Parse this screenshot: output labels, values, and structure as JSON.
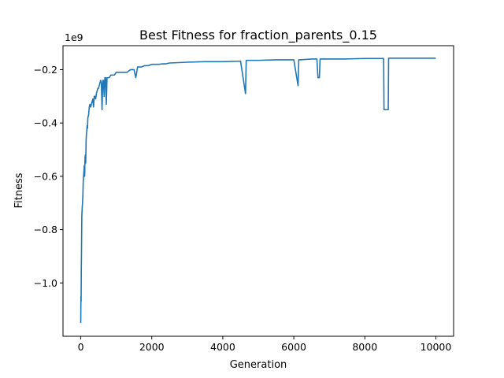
{
  "chart_data": {
    "type": "line",
    "title": "Best Fitness for fraction_parents_0.15",
    "xlabel": "Generation",
    "ylabel": "Fitness",
    "offset_label": "1e9",
    "x_ticks": [
      0,
      2000,
      4000,
      6000,
      8000,
      10000
    ],
    "x_tick_labels": [
      "0",
      "2000",
      "4000",
      "6000",
      "8000",
      "10000"
    ],
    "y_ticks": [
      -1.0,
      -0.8,
      -0.6,
      -0.4,
      -0.2
    ],
    "y_tick_labels": [
      "−1.0",
      "−0.8",
      "−0.6",
      "−0.4",
      "−0.2"
    ],
    "xlim": [
      -500,
      10500
    ],
    "ylim": [
      -1.2,
      -0.11
    ],
    "grid": false,
    "series": [
      {
        "color": "#1f77b4",
        "x": [
          0,
          5,
          10,
          15,
          20,
          25,
          30,
          40,
          50,
          60,
          70,
          80,
          90,
          100,
          110,
          120,
          130,
          140,
          150,
          160,
          170,
          180,
          190,
          200,
          220,
          240,
          260,
          280,
          300,
          320,
          340,
          360,
          380,
          400,
          420,
          440,
          460,
          480,
          500,
          520,
          540,
          560,
          580,
          600,
          620,
          640,
          660,
          680,
          700,
          720,
          740,
          760,
          780,
          800,
          850,
          900,
          950,
          1000,
          1050,
          1100,
          1200,
          1300,
          1400,
          1500,
          1550,
          1600,
          1700,
          1800,
          1900,
          2000,
          2100,
          2200,
          2300,
          2400,
          2500,
          3000,
          3500,
          4000,
          4500,
          4640,
          4660,
          4680,
          5000,
          5500,
          5600,
          6000,
          6120,
          6140,
          6160,
          6500,
          6650,
          6680,
          6720,
          6740,
          7000,
          7400,
          8000,
          8530,
          8540,
          8660,
          8670,
          9000,
          9500,
          10000
        ],
        "values": [
          -1.15,
          -1.05,
          -1.07,
          -0.95,
          -0.9,
          -0.82,
          -0.75,
          -0.72,
          -0.7,
          -0.67,
          -0.62,
          -0.6,
          -0.58,
          -0.56,
          -0.6,
          -0.53,
          -0.52,
          -0.55,
          -0.47,
          -0.44,
          -0.43,
          -0.41,
          -0.42,
          -0.38,
          -0.37,
          -0.34,
          -0.33,
          -0.34,
          -0.33,
          -0.32,
          -0.31,
          -0.34,
          -0.3,
          -0.3,
          -0.31,
          -0.29,
          -0.28,
          -0.27,
          -0.27,
          -0.26,
          -0.25,
          -0.24,
          -0.25,
          -0.35,
          -0.24,
          -0.24,
          -0.3,
          -0.23,
          -0.23,
          -0.33,
          -0.23,
          -0.23,
          -0.23,
          -0.23,
          -0.22,
          -0.22,
          -0.22,
          -0.21,
          -0.21,
          -0.21,
          -0.21,
          -0.21,
          -0.2,
          -0.2,
          -0.23,
          -0.19,
          -0.19,
          -0.185,
          -0.185,
          -0.18,
          -0.18,
          -0.18,
          -0.178,
          -0.178,
          -0.175,
          -0.172,
          -0.17,
          -0.17,
          -0.168,
          -0.29,
          -0.165,
          -0.165,
          -0.165,
          -0.163,
          -0.163,
          -0.163,
          -0.26,
          -0.163,
          -0.163,
          -0.16,
          -0.16,
          -0.23,
          -0.23,
          -0.16,
          -0.16,
          -0.16,
          -0.158,
          -0.158,
          -0.35,
          -0.35,
          -0.157,
          -0.157,
          -0.157,
          -0.157
        ]
      }
    ]
  }
}
